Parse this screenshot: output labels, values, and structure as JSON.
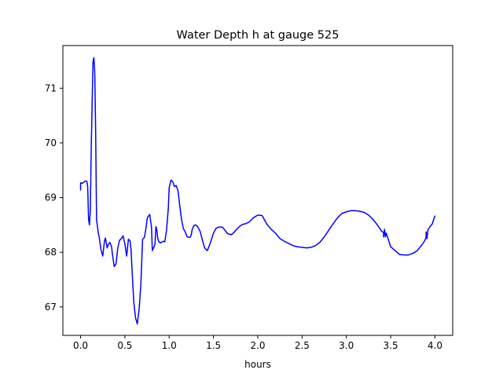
{
  "chart_data": {
    "type": "line",
    "title": "Water Depth h at gauge 525",
    "xlabel": "hours",
    "ylabel": "",
    "xlim": [
      -0.2,
      4.2
    ],
    "ylim": [
      66.48,
      71.78
    ],
    "xticks": [
      0.0,
      0.5,
      1.0,
      1.5,
      2.0,
      2.5,
      3.0,
      3.5,
      4.0
    ],
    "xtick_labels": [
      "0.0",
      "0.5",
      "1.0",
      "1.5",
      "2.0",
      "2.5",
      "3.0",
      "3.5",
      "4.0"
    ],
    "yticks": [
      67,
      68,
      69,
      70,
      71
    ],
    "ytick_labels": [
      "67",
      "68",
      "69",
      "70",
      "71"
    ],
    "grid": false,
    "legend": "none",
    "series": [
      {
        "color": "#0000ff",
        "x": [
          0.0,
          0.0,
          0.02,
          0.05,
          0.07,
          0.08,
          0.09,
          0.1,
          0.11,
          0.12,
          0.14,
          0.15,
          0.16,
          0.17,
          0.18,
          0.2,
          0.21,
          0.23,
          0.25,
          0.27,
          0.28,
          0.3,
          0.31,
          0.33,
          0.35,
          0.36,
          0.38,
          0.4,
          0.42,
          0.44,
          0.46,
          0.48,
          0.5,
          0.52,
          0.54,
          0.56,
          0.57,
          0.58,
          0.6,
          0.62,
          0.64,
          0.66,
          0.68,
          0.7,
          0.72,
          0.74,
          0.75,
          0.76,
          0.78,
          0.8,
          0.81,
          0.82,
          0.83,
          0.84,
          0.85,
          0.86,
          0.87,
          0.88,
          0.9,
          0.93,
          0.95,
          0.97,
          0.99,
          1.0,
          1.02,
          1.04,
          1.06,
          1.08,
          1.1,
          1.12,
          1.14,
          1.16,
          1.18,
          1.2,
          1.22,
          1.24,
          1.25,
          1.26,
          1.28,
          1.3,
          1.32,
          1.35,
          1.38,
          1.4,
          1.43,
          1.46,
          1.5,
          1.53,
          1.56,
          1.6,
          1.63,
          1.66,
          1.7,
          1.73,
          1.76,
          1.8,
          1.83,
          1.86,
          1.9,
          1.95,
          2.0,
          2.05,
          2.1,
          2.15,
          2.2,
          2.25,
          2.3,
          2.35,
          2.4,
          2.45,
          2.5,
          2.55,
          2.6,
          2.65,
          2.7,
          2.75,
          2.8,
          2.85,
          2.9,
          2.95,
          3.0,
          3.05,
          3.1,
          3.15,
          3.2,
          3.25,
          3.3,
          3.35,
          3.4,
          3.42,
          3.42,
          3.43,
          3.44,
          3.45,
          3.48,
          3.5,
          3.55,
          3.6,
          3.65,
          3.7,
          3.75,
          3.8,
          3.85,
          3.88,
          3.9,
          3.9,
          3.91,
          3.92,
          3.95,
          3.97,
          4.0
        ],
        "y": [
          69.13,
          69.27,
          69.26,
          69.3,
          69.3,
          69.2,
          68.6,
          68.5,
          68.78,
          69.9,
          71.48,
          71.56,
          71.3,
          70.2,
          68.6,
          68.35,
          68.28,
          68.05,
          67.93,
          68.21,
          68.26,
          68.08,
          68.13,
          68.18,
          68.1,
          67.95,
          67.74,
          67.79,
          68.08,
          68.22,
          68.25,
          68.3,
          68.15,
          67.93,
          68.24,
          68.2,
          68.03,
          67.7,
          67.1,
          66.8,
          66.69,
          66.95,
          67.4,
          68.24,
          68.27,
          68.46,
          68.6,
          68.65,
          68.69,
          68.47,
          68.03,
          68.07,
          68.1,
          68.15,
          68.47,
          68.42,
          68.26,
          68.2,
          68.17,
          68.2,
          68.19,
          68.4,
          68.8,
          69.18,
          69.32,
          69.29,
          69.2,
          69.22,
          69.12,
          68.84,
          68.6,
          68.43,
          68.38,
          68.29,
          68.27,
          68.28,
          68.33,
          68.42,
          68.49,
          68.5,
          68.47,
          68.38,
          68.19,
          68.08,
          68.03,
          68.15,
          68.35,
          68.44,
          68.46,
          68.46,
          68.4,
          68.34,
          68.32,
          68.36,
          68.42,
          68.48,
          68.51,
          68.52,
          68.55,
          68.63,
          68.68,
          68.67,
          68.52,
          68.42,
          68.35,
          68.25,
          68.2,
          68.16,
          68.12,
          68.1,
          68.09,
          68.08,
          68.09,
          68.12,
          68.18,
          68.28,
          68.4,
          68.52,
          68.63,
          68.71,
          68.74,
          68.76,
          68.76,
          68.75,
          68.73,
          68.68,
          68.6,
          68.5,
          68.38,
          68.36,
          68.28,
          68.42,
          68.28,
          68.35,
          68.2,
          68.1,
          68.03,
          67.96,
          67.95,
          67.95,
          67.98,
          68.03,
          68.13,
          68.2,
          68.27,
          68.37,
          68.25,
          68.41,
          68.48,
          68.52,
          68.67
        ],
        "linewidth": 1.5
      }
    ]
  }
}
